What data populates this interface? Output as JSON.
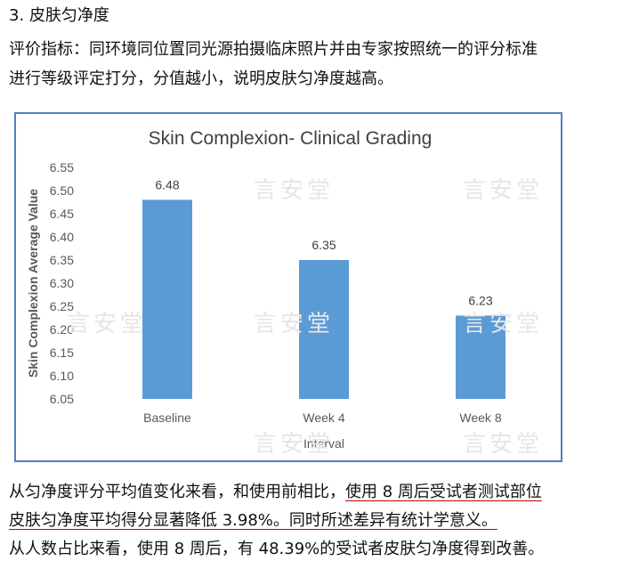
{
  "section": {
    "heading": "3. 皮肤匀净度",
    "desc_line1": "评价指标：同环境同位置同光源拍摄临床照片并由专家按照统一的评分标准",
    "desc_line2": "进行等级评定打分，分值越小，说明皮肤匀净度越高。"
  },
  "conclusion": {
    "p1_plain": "从匀净度评分平均值变化来看，和使用前相比，",
    "p1_underlined": "使用 8 周后受试者测试部位",
    "p2_underlined": "皮肤匀净度平均得分显著降低 3.98%。同时所述差异有统计学意义。",
    "p3": "从人数占比来看，使用 8 周后，有 48.39%的受试者皮肤匀净度得到改善。"
  },
  "watermark": {
    "text": "言安堂"
  },
  "colors": {
    "bar": "#5b9bd5",
    "frame": "#4f81bd",
    "underline": "#c00000"
  },
  "chart_data": {
    "type": "bar",
    "title": "Skin Complexion- Clinical Grading",
    "xlabel": "Interval",
    "ylabel": "Skin Complexion Average Value",
    "categories": [
      "Baseline",
      "Week 4",
      "Week 8"
    ],
    "values": [
      6.48,
      6.35,
      6.23
    ],
    "data_labels": [
      "6.48",
      "6.35",
      "6.23"
    ],
    "ylim": [
      6.05,
      6.55
    ],
    "yticks": [
      "6.55",
      "6.50",
      "6.45",
      "6.40",
      "6.35",
      "6.30",
      "6.25",
      "6.20",
      "6.15",
      "6.10",
      "6.05"
    ],
    "grid": false,
    "legend": "none"
  }
}
